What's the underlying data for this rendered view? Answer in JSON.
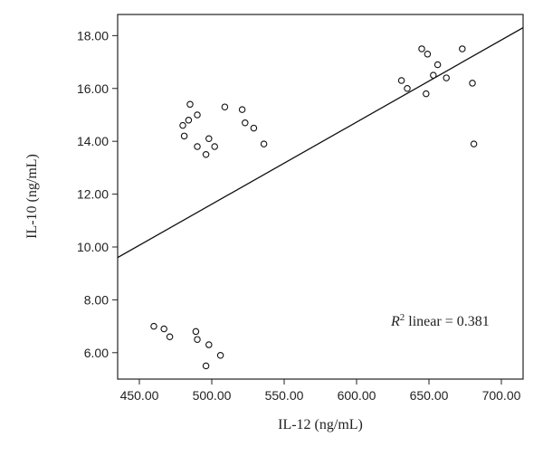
{
  "chart_data": {
    "type": "scatter",
    "xlabel": "IL-12 (ng/mL)",
    "ylabel": "IL-10 (ng/mL)",
    "xlim": [
      435,
      715
    ],
    "ylim": [
      5.0,
      18.8
    ],
    "x_ticks": [
      "450.00",
      "500.00",
      "550.00",
      "600.00",
      "650.00",
      "700.00"
    ],
    "y_ticks": [
      "6.00",
      "8.00",
      "10.00",
      "12.00",
      "14.00",
      "16.00",
      "18.00"
    ],
    "x_tick_values": [
      450,
      500,
      550,
      600,
      650,
      700
    ],
    "y_tick_values": [
      6,
      8,
      10,
      12,
      14,
      16,
      18
    ],
    "grid": false,
    "annotation": {
      "r_symbol": "R",
      "superscript": "2",
      "text": " linear = 0.381"
    },
    "fit_line": {
      "x": [
        435,
        715
      ],
      "y": [
        9.6,
        18.3
      ]
    },
    "points": [
      {
        "x": 485,
        "y": 15.4
      },
      {
        "x": 490,
        "y": 15.0
      },
      {
        "x": 480,
        "y": 14.6
      },
      {
        "x": 484,
        "y": 14.8
      },
      {
        "x": 481,
        "y": 14.2
      },
      {
        "x": 498,
        "y": 14.1
      },
      {
        "x": 490,
        "y": 13.8
      },
      {
        "x": 502,
        "y": 13.8
      },
      {
        "x": 496,
        "y": 13.5
      },
      {
        "x": 509,
        "y": 15.3
      },
      {
        "x": 521,
        "y": 15.2
      },
      {
        "x": 523,
        "y": 14.7
      },
      {
        "x": 529,
        "y": 14.5
      },
      {
        "x": 536,
        "y": 13.9
      },
      {
        "x": 645,
        "y": 17.5
      },
      {
        "x": 649,
        "y": 17.3
      },
      {
        "x": 673,
        "y": 17.5
      },
      {
        "x": 656,
        "y": 16.9
      },
      {
        "x": 653,
        "y": 16.5
      },
      {
        "x": 662,
        "y": 16.4
      },
      {
        "x": 631,
        "y": 16.3
      },
      {
        "x": 635,
        "y": 16.0
      },
      {
        "x": 680,
        "y": 16.2
      },
      {
        "x": 648,
        "y": 15.8
      },
      {
        "x": 681,
        "y": 13.9
      },
      {
        "x": 460,
        "y": 7.0
      },
      {
        "x": 467,
        "y": 6.9
      },
      {
        "x": 471,
        "y": 6.6
      },
      {
        "x": 489,
        "y": 6.8
      },
      {
        "x": 490,
        "y": 6.5
      },
      {
        "x": 498,
        "y": 6.3
      },
      {
        "x": 506,
        "y": 5.9
      },
      {
        "x": 496,
        "y": 5.5
      }
    ]
  }
}
